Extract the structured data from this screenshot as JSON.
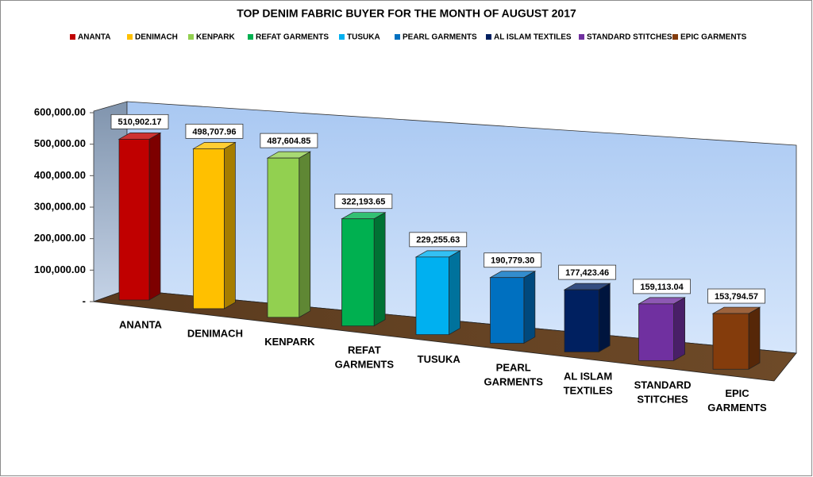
{
  "chart_data": {
    "type": "bar3d",
    "title": "TOP DENIM FABRIC BUYER FOR THE MONTH OF AUGUST 2017",
    "categories": [
      "ANANTA",
      "DENIMACH",
      "KENPARK",
      "REFAT GARMENTS",
      "TUSUKA",
      "PEARL GARMENTS",
      "AL ISLAM TEXTILES",
      "STANDARD STITCHES",
      "EPIC GARMENTS"
    ],
    "values": [
      510902.17,
      498707.96,
      487604.85,
      322193.65,
      229255.63,
      190779.3,
      177423.46,
      159113.04,
      153794.57
    ],
    "value_labels": [
      "510,902.17",
      "498,707.96",
      "487,604.85",
      "322,193.65",
      "229,255.63",
      "190,779.30",
      "177,423.46",
      "159,113.04",
      "153,794.57"
    ],
    "colors": [
      "#c00000",
      "#ffc000",
      "#92d050",
      "#00b050",
      "#00b0f0",
      "#0070c0",
      "#002060",
      "#7030a0",
      "#843c0c"
    ],
    "ylim": [
      0,
      600000
    ],
    "yticks": [
      {
        "value": 0,
        "label": "-"
      },
      {
        "value": 100000,
        "label": "100,000.00"
      },
      {
        "value": 200000,
        "label": "200,000.00"
      },
      {
        "value": 300000,
        "label": "300,000.00"
      },
      {
        "value": 400000,
        "label": "400,000.00"
      },
      {
        "value": 500000,
        "label": "500,000.00"
      },
      {
        "value": 600000,
        "label": "600,000.00"
      }
    ],
    "legend": "top"
  }
}
